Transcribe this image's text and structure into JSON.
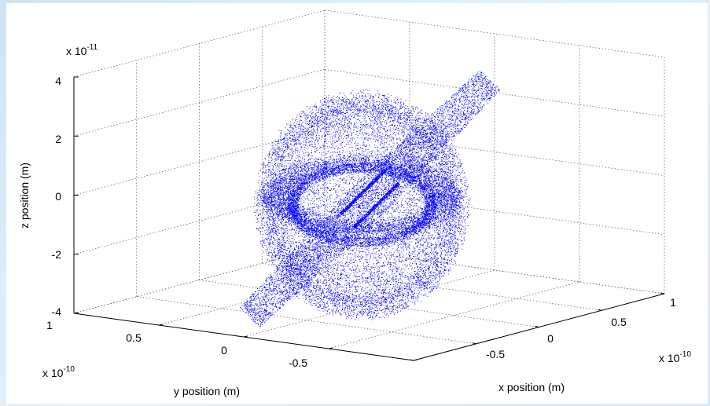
{
  "chart_data": {
    "type": "scatter",
    "dimensions": 3,
    "marker_color": "#0000ff",
    "grid": true,
    "x_axis": {
      "label": "x position (m)",
      "range": [
        -1,
        1
      ],
      "tick_labels": [
        "-0.5",
        "0",
        "0.5",
        "1"
      ],
      "exponent": "x 10",
      "exponent_power": "-10"
    },
    "y_axis": {
      "label": "y position (m)",
      "range": [
        -1,
        1
      ],
      "tick_labels": [
        "1",
        "0.5",
        "0",
        "-0.5"
      ],
      "exponent": "x 10",
      "exponent_power": "-10"
    },
    "z_axis": {
      "label": "z position (m)",
      "range": [
        -4,
        4
      ],
      "tick_labels": [
        "4",
        "2",
        "0",
        "-2",
        "-4"
      ],
      "exponent": "x 10",
      "exponent_power": "-11"
    },
    "structures": [
      {
        "shape": "hollow sphere",
        "radius": 0.9
      },
      {
        "shape": "tilted elongated band crossing center"
      },
      {
        "shape": "inner ring"
      },
      {
        "shape": "central bright box"
      }
    ]
  }
}
